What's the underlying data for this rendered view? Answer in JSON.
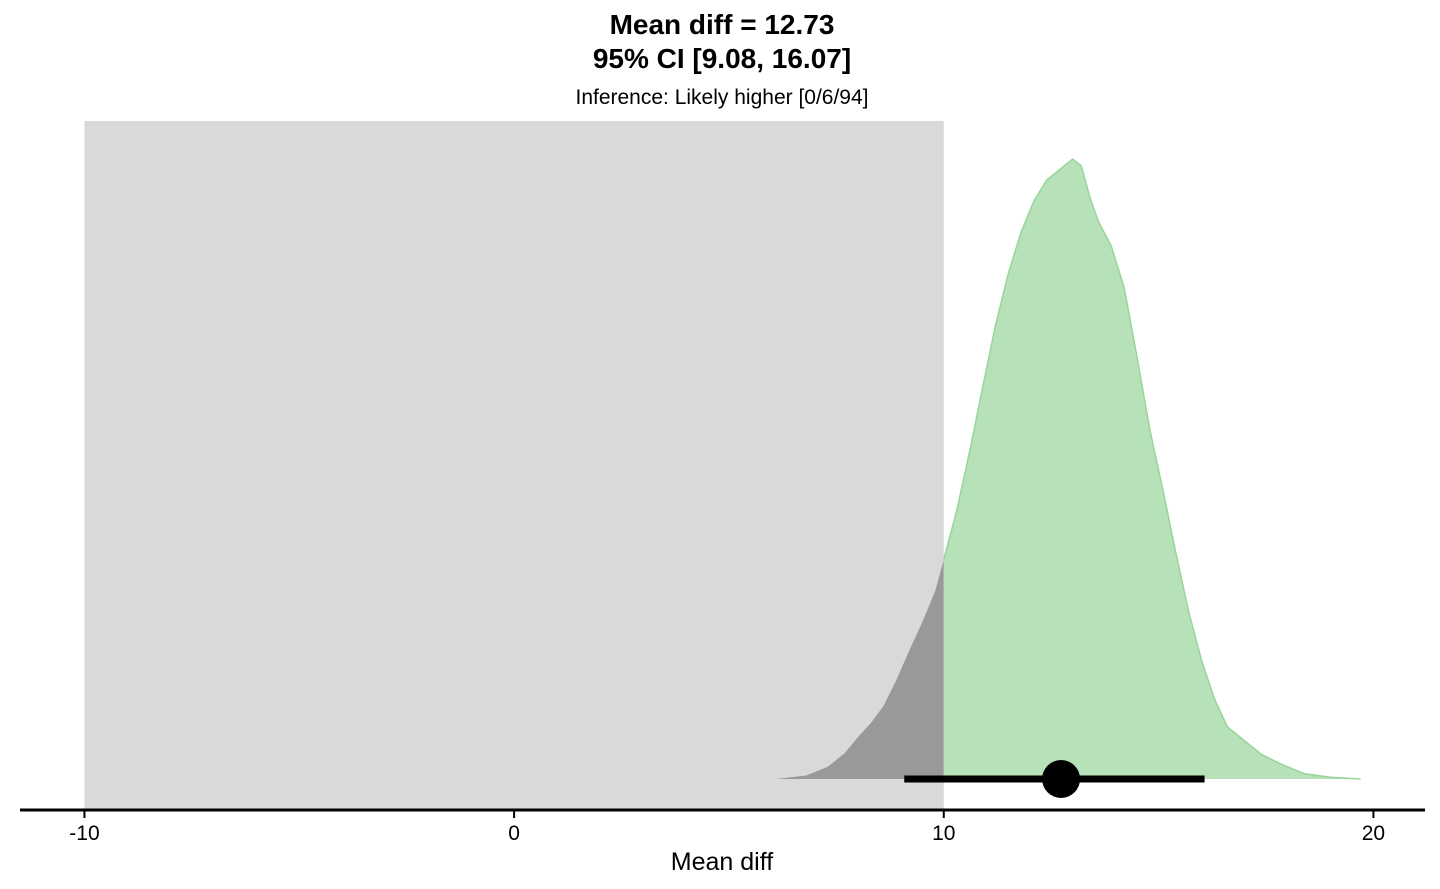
{
  "chart_data": {
    "type": "area",
    "title_lines": [
      "Mean diff = 12.73",
      "95% CI [9.08, 16.07]"
    ],
    "subtitle": "Inference: Likely higher [0/6/94]",
    "xlabel": "Mean diff",
    "ylabel": "",
    "xlim": [
      -11.5,
      21.2
    ],
    "x_ticks": [
      -10,
      0,
      10,
      20
    ],
    "x_tick_labels": [
      "-10",
      "0",
      "10",
      "20"
    ],
    "region": {
      "x_start": -10,
      "x_end": 10,
      "color": "#d9d9d9"
    },
    "threshold": 10,
    "density": {
      "x": [
        6.1,
        6.8,
        7.3,
        7.7,
        8.0,
        8.3,
        8.6,
        8.9,
        9.2,
        9.5,
        9.8,
        10.0,
        10.3,
        10.6,
        10.9,
        11.2,
        11.5,
        11.8,
        12.1,
        12.4,
        12.7,
        13.0,
        13.2,
        13.4,
        13.6,
        13.9,
        14.2,
        14.5,
        14.8,
        15.1,
        15.4,
        15.7,
        16.0,
        16.3,
        16.6,
        17.0,
        17.4,
        17.9,
        18.4,
        19.0,
        19.7
      ],
      "y": [
        0.0,
        0.01,
        0.035,
        0.075,
        0.12,
        0.16,
        0.21,
        0.285,
        0.37,
        0.45,
        0.54,
        0.63,
        0.77,
        0.94,
        1.12,
        1.3,
        1.45,
        1.57,
        1.66,
        1.72,
        1.75,
        1.78,
        1.76,
        1.67,
        1.6,
        1.53,
        1.41,
        1.21,
        1.0,
        0.83,
        0.65,
        0.48,
        0.34,
        0.23,
        0.15,
        0.11,
        0.07,
        0.04,
        0.015,
        0.005,
        0.0
      ],
      "ylim": [
        0,
        1.8
      ],
      "below_color": "#999999",
      "above_color": "#b7e1b9",
      "line_color": "#97d699"
    },
    "point_estimate": 12.73,
    "interval": [
      9.08,
      16.07
    ],
    "interval_color": "#000000"
  }
}
